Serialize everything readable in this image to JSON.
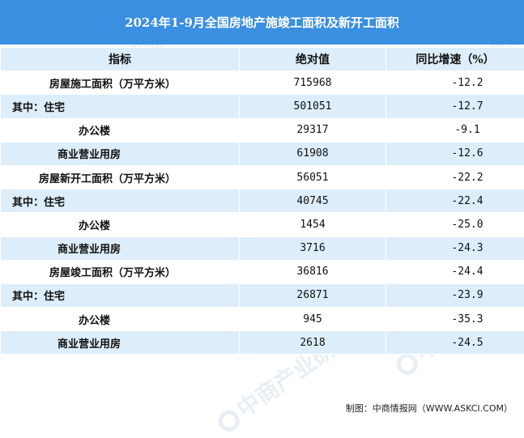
{
  "title": "2024年1-9月全国房地产施竣工面积及新开工面积",
  "header": {
    "indicator": "指标",
    "absolute": "绝对值",
    "yoy": "同比增速（%）"
  },
  "rows": [
    {
      "indicator": "房屋施工面积（万平方米）",
      "absolute": "715968",
      "yoy": "-12.2"
    },
    {
      "indicator": "其中：住宅",
      "absolute": "501051",
      "yoy": "-12.7"
    },
    {
      "indicator": "办公楼",
      "absolute": "29317",
      "yoy": "-9.1"
    },
    {
      "indicator": "商业营业用房",
      "absolute": "61908",
      "yoy": "-12.6"
    },
    {
      "indicator": "房屋新开工面积（万平方米）",
      "absolute": "56051",
      "yoy": "-22.2"
    },
    {
      "indicator": "其中：住宅",
      "absolute": "40745",
      "yoy": "-22.4"
    },
    {
      "indicator": "办公楼",
      "absolute": "1454",
      "yoy": "-25.0"
    },
    {
      "indicator": "商业营业用房",
      "absolute": "3716",
      "yoy": "-24.3"
    },
    {
      "indicator": "房屋竣工面积（万平方米）",
      "absolute": "36816",
      "yoy": "-24.4"
    },
    {
      "indicator": "其中：住宅",
      "absolute": "26871",
      "yoy": "-23.9"
    },
    {
      "indicator": "办公楼",
      "absolute": "945",
      "yoy": "-35.3"
    },
    {
      "indicator": "商业营业用房",
      "absolute": "2618",
      "yoy": "-24.5"
    }
  ],
  "footer": "制图：中商情报网（WWW.ASKCI.COM）",
  "watermark": "中商产业研究院",
  "colors": {
    "title_bg": "#3a8fe0",
    "stripe": "#ddeefa"
  }
}
